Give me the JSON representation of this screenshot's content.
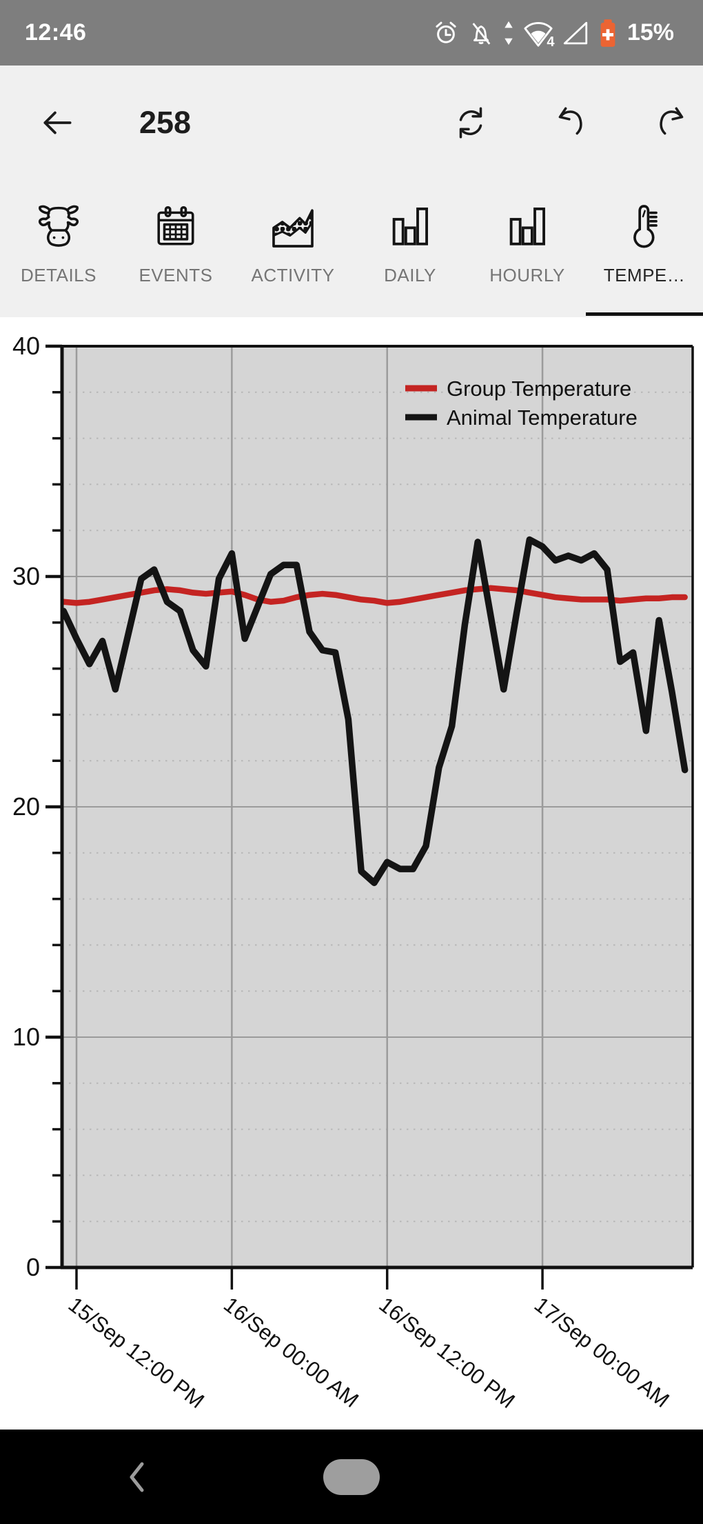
{
  "status_bar": {
    "time": "12:46",
    "battery_percent": "15%",
    "bar_color": "#7e7e7e",
    "battery_color": "#ec6433",
    "icons": [
      "alarm-icon",
      "notifications-off-icon",
      "data-updown-icon",
      "wifi-calling-4-icon",
      "signal-empty-icon",
      "battery-saver-icon"
    ],
    "wifi_badge": "4"
  },
  "header": {
    "title": "258",
    "actions": [
      "back",
      "sync",
      "undo",
      "redo"
    ]
  },
  "tabs": [
    {
      "label": "DETAILS",
      "selected": false
    },
    {
      "label": "EVENTS",
      "selected": false
    },
    {
      "label": "ACTIVITY",
      "selected": false
    },
    {
      "label": "DAILY",
      "selected": false
    },
    {
      "label": "HOURLY",
      "selected": false
    },
    {
      "label": "TEMPE…",
      "selected": true
    }
  ],
  "chart_data": {
    "type": "line",
    "title": "",
    "xlabel": "",
    "ylabel": "",
    "ylim": [
      0,
      40
    ],
    "y_major_ticks": [
      40,
      30,
      20,
      10,
      0
    ],
    "y_minor_step": 2,
    "grid": true,
    "legend_position": "top-right",
    "plot_background": "#d5d5d5",
    "grid_major_color": "#9b9b9b",
    "grid_minor_color": "#b7b7b7",
    "x_start_hour": -1,
    "x_interval_hours": 1,
    "x_ticks": [
      {
        "hour": 0,
        "label": "15/Sep 12:00 PM"
      },
      {
        "hour": 12,
        "label": "16/Sep 00:00 AM"
      },
      {
        "hour": 24,
        "label": "16/Sep 12:00 PM"
      },
      {
        "hour": 36,
        "label": "17/Sep 00:00 AM"
      }
    ],
    "series": [
      {
        "name": "Group Temperature",
        "color": "#c42422",
        "values": [
          28.9,
          28.85,
          28.9,
          29.0,
          29.1,
          29.2,
          29.3,
          29.4,
          29.45,
          29.4,
          29.3,
          29.25,
          29.3,
          29.35,
          29.2,
          29.0,
          28.9,
          28.95,
          29.1,
          29.2,
          29.25,
          29.2,
          29.1,
          29.0,
          28.95,
          28.85,
          28.9,
          29.0,
          29.1,
          29.2,
          29.3,
          29.4,
          29.45,
          29.5,
          29.45,
          29.4,
          29.3,
          29.2,
          29.1,
          29.05,
          29.0,
          29.0,
          29.0,
          28.95,
          29.0,
          29.05,
          29.05,
          29.1,
          29.1
        ]
      },
      {
        "name": "Animal Temperature",
        "color": "#141414",
        "values": [
          28.5,
          27.3,
          26.2,
          27.2,
          25.1,
          27.5,
          29.9,
          30.3,
          28.9,
          28.5,
          26.8,
          26.1,
          29.9,
          31.0,
          27.3,
          28.7,
          30.1,
          30.5,
          30.5,
          27.6,
          26.8,
          26.7,
          23.8,
          17.2,
          16.7,
          17.6,
          17.3,
          17.3,
          18.3,
          21.7,
          23.5,
          27.9,
          31.5,
          28.3,
          25.1,
          28.4,
          31.6,
          31.3,
          30.7,
          30.9,
          30.7,
          31.0,
          30.3,
          26.3,
          26.7,
          23.3,
          28.1,
          25.0,
          21.6
        ]
      }
    ]
  },
  "nav_bar": {
    "icons": [
      "back-chevron-icon",
      "home-pill"
    ]
  }
}
